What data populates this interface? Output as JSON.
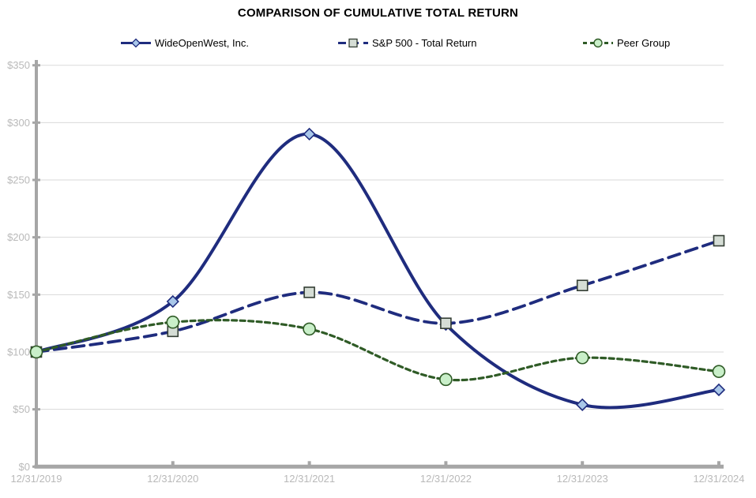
{
  "page": {
    "background": "#FFFFFF"
  },
  "chart_data": {
    "type": "line",
    "title": "COMPARISON OF CUMULATIVE TOTAL RETURN",
    "x_categories": [
      "12/31/2019",
      "12/31/2020",
      "12/31/2021",
      "12/31/2022",
      "12/31/2023",
      "12/31/2024"
    ],
    "series": [
      {
        "name": "WideOpenWest, Inc.",
        "values": [
          100,
          144,
          290,
          124,
          54,
          67
        ],
        "color": "#1F2C7E",
        "line_style": "solid",
        "line_width": 4,
        "marker": "diamond",
        "marker_fill": "#A9C7E9",
        "marker_stroke": "#1F2C7E"
      },
      {
        "name": "S&P 500 - Total Return",
        "values": [
          100,
          118,
          152,
          125,
          158,
          197
        ],
        "color": "#1F2C7E",
        "line_style": "long-dash",
        "line_width": 3.8,
        "marker": "square",
        "marker_fill": "#D5DDD5",
        "marker_stroke": "#343E34"
      },
      {
        "name": "Peer Group",
        "values": [
          100,
          126,
          120,
          76,
          95,
          83
        ],
        "color": "#2F5B26",
        "line_style": "short-dash",
        "line_width": 3.2,
        "marker": "circle",
        "marker_fill": "#C9EFC9",
        "marker_stroke": "#2F5B26"
      }
    ],
    "ylim": [
      0,
      350
    ],
    "ytick_step": 50,
    "y_tick_labels": [
      "$0",
      "$50",
      "$100",
      "$150",
      "$200",
      "$250",
      "$300",
      "$350"
    ],
    "grid": true,
    "smoothed": true,
    "legend_position": "top",
    "axis_color": "#A6A6A6",
    "grid_color": "#DADADA",
    "tick_label_color": "#B9B9B9"
  }
}
